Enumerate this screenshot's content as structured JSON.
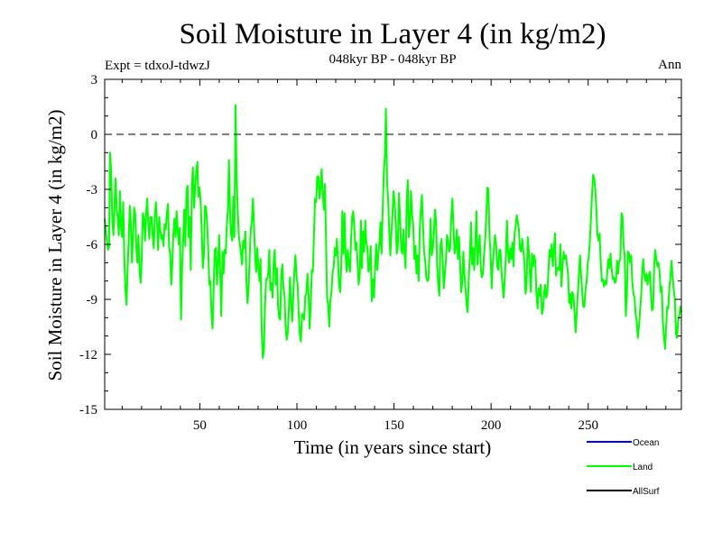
{
  "chart_data": {
    "type": "line",
    "title": "Soil Moisture in Layer 4 (in kg/m2)",
    "subtitle": "048kyr BP - 048kyr BP",
    "left_label": "Expt = tdxoJ-tdwzJ",
    "right_label": "Ann",
    "xlabel": "Time (in years since start)",
    "ylabel": "Soil Moisture in Layer 4 (in kg/m2)",
    "xlim": [
      1,
      298
    ],
    "ylim": [
      -15,
      3
    ],
    "x_ticks": [
      50,
      100,
      150,
      200,
      250
    ],
    "x_tick_labels": [
      "50",
      "100",
      "150",
      "200",
      "250"
    ],
    "y_ticks": [
      3,
      0,
      -3,
      -6,
      -9,
      -12,
      -15
    ],
    "y_tick_labels": [
      "3",
      "0",
      "-3",
      "-6",
      "-9",
      "-12",
      "-15"
    ],
    "reference_line": 0,
    "legend_position": "bottom-right",
    "legend": [
      {
        "name": "Ocean",
        "color": "#0000ff"
      },
      {
        "name": "Land",
        "color": "#00ff00"
      },
      {
        "name": "AllSurf",
        "color": "#000000"
      }
    ],
    "series": [
      {
        "name": "Land",
        "color": "#00ff00",
        "x_start": 1,
        "x_step": 1,
        "values": [
          -4.6,
          -5.2,
          -5.8,
          -6.3,
          -6.1,
          -1.0,
          -2.1,
          -4.8,
          -5.5,
          -3.8,
          -2.4,
          -4.1,
          -4.6,
          -5.5,
          -3.1,
          -5.0,
          -5.6,
          -3.7,
          -6.6,
          -8.5,
          -9.3,
          -7.3,
          -5.8,
          -3.9,
          -4.8,
          -7.0,
          -5.6,
          -4.0,
          -4.3,
          -6.2,
          -7.0,
          -5.5,
          -7.5,
          -8.1,
          -6.6,
          -4.3,
          -4.6,
          -5.8,
          -4.3,
          -3.5,
          -4.9,
          -5.7,
          -4.5,
          -4.5,
          -5.5,
          -6.2,
          -4.4,
          -3.7,
          -4.9,
          -6.3,
          -4.5,
          -5.2,
          -5.7,
          -5.5,
          -6.1,
          -4.9,
          -5.2,
          -4.3,
          -3.8,
          -6.1,
          -6.5,
          -8.2,
          -7.1,
          -5.4,
          -4.6,
          -5.6,
          -4.2,
          -5.2,
          -6.0,
          -5.1,
          -10.1,
          -7.2,
          -5.7,
          -4.1,
          -6.1,
          -3.1,
          -2.8,
          -5.6,
          -4.5,
          -7.4,
          -2.8,
          -1.8,
          -4.0,
          -2.8,
          -2.0,
          -1.5,
          -3.4,
          -2.9,
          -3.7,
          -5.2,
          -7.3,
          -6.6,
          -3.9,
          -4.0,
          -4.8,
          -6.4,
          -8.2,
          -8.0,
          -9.9,
          -10.6,
          -8.2,
          -6.3,
          -6.2,
          -8.2,
          -7.0,
          -5.5,
          -7.6,
          -9.9,
          -6.4,
          -7.6,
          -6.3,
          -6.5,
          -5.0,
          -4.1,
          -1.4,
          -4.2,
          -5.5,
          -5.8,
          -3.4,
          -5.6,
          1.6,
          -2.4,
          -4.1,
          -5.5,
          -6.0,
          -6.5,
          -7.1,
          -5.8,
          -6.2,
          -5.3,
          -7.9,
          -9.2,
          -8.5,
          -6.6,
          -5.2,
          -4.7,
          -3.5,
          -5.0,
          -6.7,
          -7.5,
          -6.2,
          -7.2,
          -8.0,
          -6.8,
          -10.6,
          -12.2,
          -11.8,
          -9.4,
          -7.9,
          -7.9,
          -7.6,
          -6.3,
          -8.5,
          -8.1,
          -8.9,
          -7.0,
          -6.3,
          -8.2,
          -7.3,
          -9.4,
          -10.0,
          -10.1,
          -7.6,
          -7.1,
          -8.4,
          -8.8,
          -10.6,
          -11.2,
          -10.8,
          -9.5,
          -7.8,
          -9.3,
          -10.2,
          -8.7,
          -7.4,
          -6.6,
          -7.8,
          -8.2,
          -9.8,
          -10.9,
          -11.3,
          -9.8,
          -9.8,
          -10.1,
          -8.8,
          -8.7,
          -7.6,
          -8.7,
          -10.6,
          -9.3,
          -7.4,
          -7.5,
          -5.4,
          -3.5,
          -3.7,
          -2.3,
          -2.3,
          -3.5,
          -2.9,
          -1.9,
          -3.2,
          -4.1,
          -2.7,
          -5.6,
          -8.9,
          -9.3,
          -10.5,
          -9.1,
          -8.6,
          -7.5,
          -7.3,
          -6.2,
          -6.6,
          -5.7,
          -6.9,
          -8.2,
          -8.6,
          -7.2,
          -4.2,
          -6.5,
          -4.3,
          -6.7,
          -7.5,
          -6.3,
          -7.1,
          -7.5,
          -5.7,
          -4.5,
          -4.2,
          -5.1,
          -6.3,
          -5.9,
          -7.0,
          -8.2,
          -7.6,
          -4.7,
          -7.3,
          -5.3,
          -6.4,
          -4.7,
          -5.9,
          -6.2,
          -7.5,
          -7.2,
          -6.1,
          -9.1,
          -7.9,
          -8.9,
          -7.3,
          -6.0,
          -7.4,
          -6.6,
          -5.9,
          -4.8,
          -6.5,
          -4.2,
          -2.2,
          -1.2,
          1.4,
          -2.6,
          -3.6,
          -5.3,
          -6.6,
          -5.4,
          -4.3,
          -3.1,
          -3.7,
          -5.0,
          -6.5,
          -6.0,
          -3.2,
          -4.7,
          -6.3,
          -6.5,
          -5.2,
          -6.5,
          -7.3,
          -3.7,
          -2.5,
          -5.6,
          -4.8,
          -3.1,
          -4.4,
          -4.9,
          -6.8,
          -6.1,
          -7.6,
          -6.6,
          -8.0,
          -5.2,
          -4.1,
          -3.3,
          -5.0,
          -6.4,
          -6.9,
          -7.8,
          -8.0,
          -7.9,
          -6.4,
          -4.6,
          -6.6,
          -6.2,
          -5.3,
          -4.1,
          -4.7,
          -7.2,
          -8.2,
          -8.8,
          -6.1,
          -5.7,
          -6.9,
          -8.4,
          -7.6,
          -6.9,
          -5.5,
          -5.8,
          -6.4,
          -6.2,
          -4.4,
          -3.5,
          -5.1,
          -6.5,
          -6.2,
          -5.2,
          -6.8,
          -5.6,
          -7.0,
          -8.6,
          -8.1,
          -6.4,
          -7.6,
          -8.4,
          -9.3,
          -9.7,
          -7.7,
          -6.6,
          -4.8,
          -7.1,
          -6.2,
          -7.4,
          -5.8,
          -4.2,
          -7.1,
          -6.2,
          -5.5,
          -7.3,
          -7.8,
          -7.6,
          -6.5,
          -5.7,
          -4.5,
          -2.9,
          -3.0,
          -5.6,
          -6.5,
          -8.4,
          -7.0,
          -6.3,
          -5.5,
          -6.0,
          -7.2,
          -7.4,
          -6.3,
          -6.3,
          -7.5,
          -8.3,
          -8.9,
          -7.9,
          -6.6,
          -4.7,
          -6.4,
          -7.0,
          -6.2,
          -6.8,
          -5.9,
          -7.2,
          -5.4,
          -5.0,
          -4.4,
          -4.8,
          -5.2,
          -6.3,
          -6.4,
          -5.7,
          -6.3,
          -7.0,
          -8.7,
          -8.2,
          -5.6,
          -6.3,
          -7.6,
          -8.6,
          -6.5,
          -7.2,
          -6.6,
          -6.9,
          -8.6,
          -9.5,
          -8.4,
          -8.8,
          -8.2,
          -9.8,
          -9.6,
          -8.7,
          -8.2,
          -8.9,
          -8.7,
          -7.6,
          -6.3,
          -6.7,
          -6.0,
          -7.2,
          -6.3,
          -5.4,
          -7.7,
          -7.3,
          -7.3,
          -7.4,
          -6.0,
          -8.3,
          -7.2,
          -6.4,
          -6.8,
          -6.6,
          -7.1,
          -7.6,
          -9.2,
          -8.7,
          -9.5,
          -8.6,
          -8.8,
          -9.7,
          -10.8,
          -9.8,
          -8.7,
          -7.6,
          -6.6,
          -7.7,
          -8.6,
          -9.4,
          -9.4,
          -8.5,
          -8.1,
          -7.1,
          -6.7,
          -5.9,
          -4.7,
          -3.4,
          -2.2,
          -2.4,
          -3.0,
          -4.1,
          -5.5,
          -5.8,
          -5.4,
          -6.9,
          -8.0,
          -7.9,
          -8.3,
          -8.0,
          -8.2,
          -7.5,
          -6.8,
          -7.3,
          -6.5,
          -7.3,
          -7.9,
          -7.8,
          -8.1,
          -8.0,
          -6.9,
          -7.6,
          -6.9,
          -6.8,
          -4.3,
          -4.5,
          -6.1,
          -6.6,
          -9.9,
          -8.8,
          -6.4,
          -6.5,
          -7.0,
          -6.6,
          -8.1,
          -8.7,
          -8.9,
          -9.8,
          -10.2,
          -11.1,
          -10.5,
          -9.7,
          -8.9,
          -7.6,
          -6.8,
          -7.6,
          -8.0,
          -7.6,
          -8.2,
          -7.7,
          -7.5,
          -8.6,
          -9.6,
          -9.5,
          -7.2,
          -6.3,
          -6.8,
          -7.2,
          -7.0,
          -7.5,
          -8.6,
          -8.3,
          -10.3,
          -11.0,
          -11.7,
          -10.5,
          -9.4,
          -9.5,
          -8.3,
          -7.8,
          -6.9,
          -7.7,
          -8.5,
          -9.0,
          -10.9,
          -11.1,
          -10.2,
          -9.9,
          -9.4,
          -9.7
        ]
      }
    ]
  }
}
